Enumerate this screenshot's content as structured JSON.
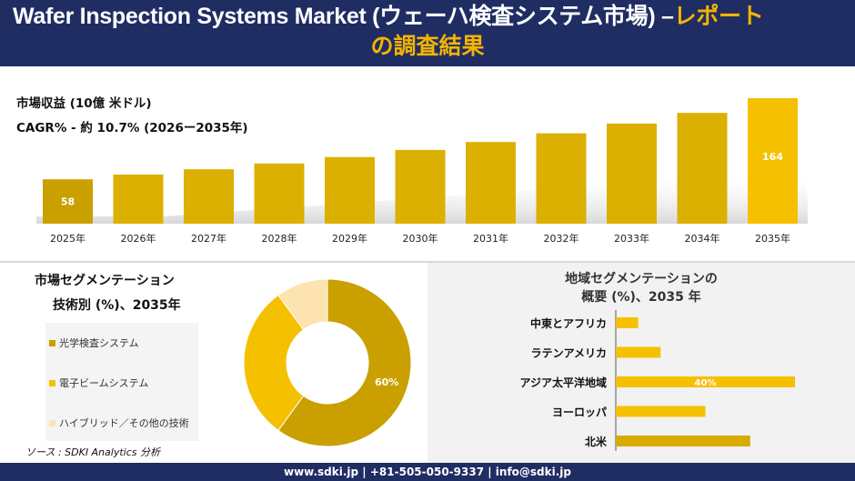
{
  "header": {
    "title_main": "Wafer Inspection Systems Market (ウェーハ検査システム市場)",
    "title_sep": " –",
    "title_highlight": "レポート",
    "title_line2": "の調査結果"
  },
  "revenue": {
    "label": "市場収益 (10億 米ドル)",
    "cagr": "CAGR% - 約 10.7% (2026ー2035年)"
  },
  "chart_data": [
    {
      "type": "bar",
      "categories": [
        "2025年",
        "2026年",
        "2027年",
        "2028年",
        "2029年",
        "2030年",
        "2031年",
        "2032年",
        "2033年",
        "2034年",
        "2035年"
      ],
      "values": [
        58,
        64.2,
        71.1,
        78.7,
        87.1,
        96.4,
        106.7,
        118.1,
        130.8,
        144.8,
        164
      ],
      "data_labels": [
        "58",
        "",
        "",
        "",
        "",
        "",
        "",
        "",
        "",
        "",
        "164"
      ],
      "colors": {
        "first": "#c9a000",
        "mid": "#dbb000",
        "last": "#f5c000"
      }
    },
    {
      "type": "pie",
      "title": "市場セグメンテーション",
      "subtitle": "技術別 (%)、2035年",
      "categories": [
        "光学検査システム",
        "電子ビームシステム",
        "ハイブリッド／その他の技術"
      ],
      "values": [
        60,
        30,
        10
      ],
      "data_labels": [
        "60%",
        "",
        ""
      ],
      "colors": [
        "#c9a000",
        "#f5c000",
        "#fde3b0"
      ]
    },
    {
      "type": "bar",
      "title": "地域セグメンテーションの",
      "subtitle": "概要 (%)、2035 年",
      "categories": [
        "中東とアフリカ",
        "ラテンアメリカ",
        "アジア太平洋地域",
        "ヨーロッパ",
        "北米"
      ],
      "values": [
        5,
        10,
        40,
        20,
        30
      ],
      "data_labels": [
        "",
        "",
        "40%",
        "",
        ""
      ],
      "colors": {
        "default": "#f5c000",
        "north_america": "#d9aa00"
      }
    }
  ],
  "source": "ソース : SDKI Analytics 分析",
  "footer": "www.sdki.jp | +81-505-050-9337 | info@sdki.jp"
}
